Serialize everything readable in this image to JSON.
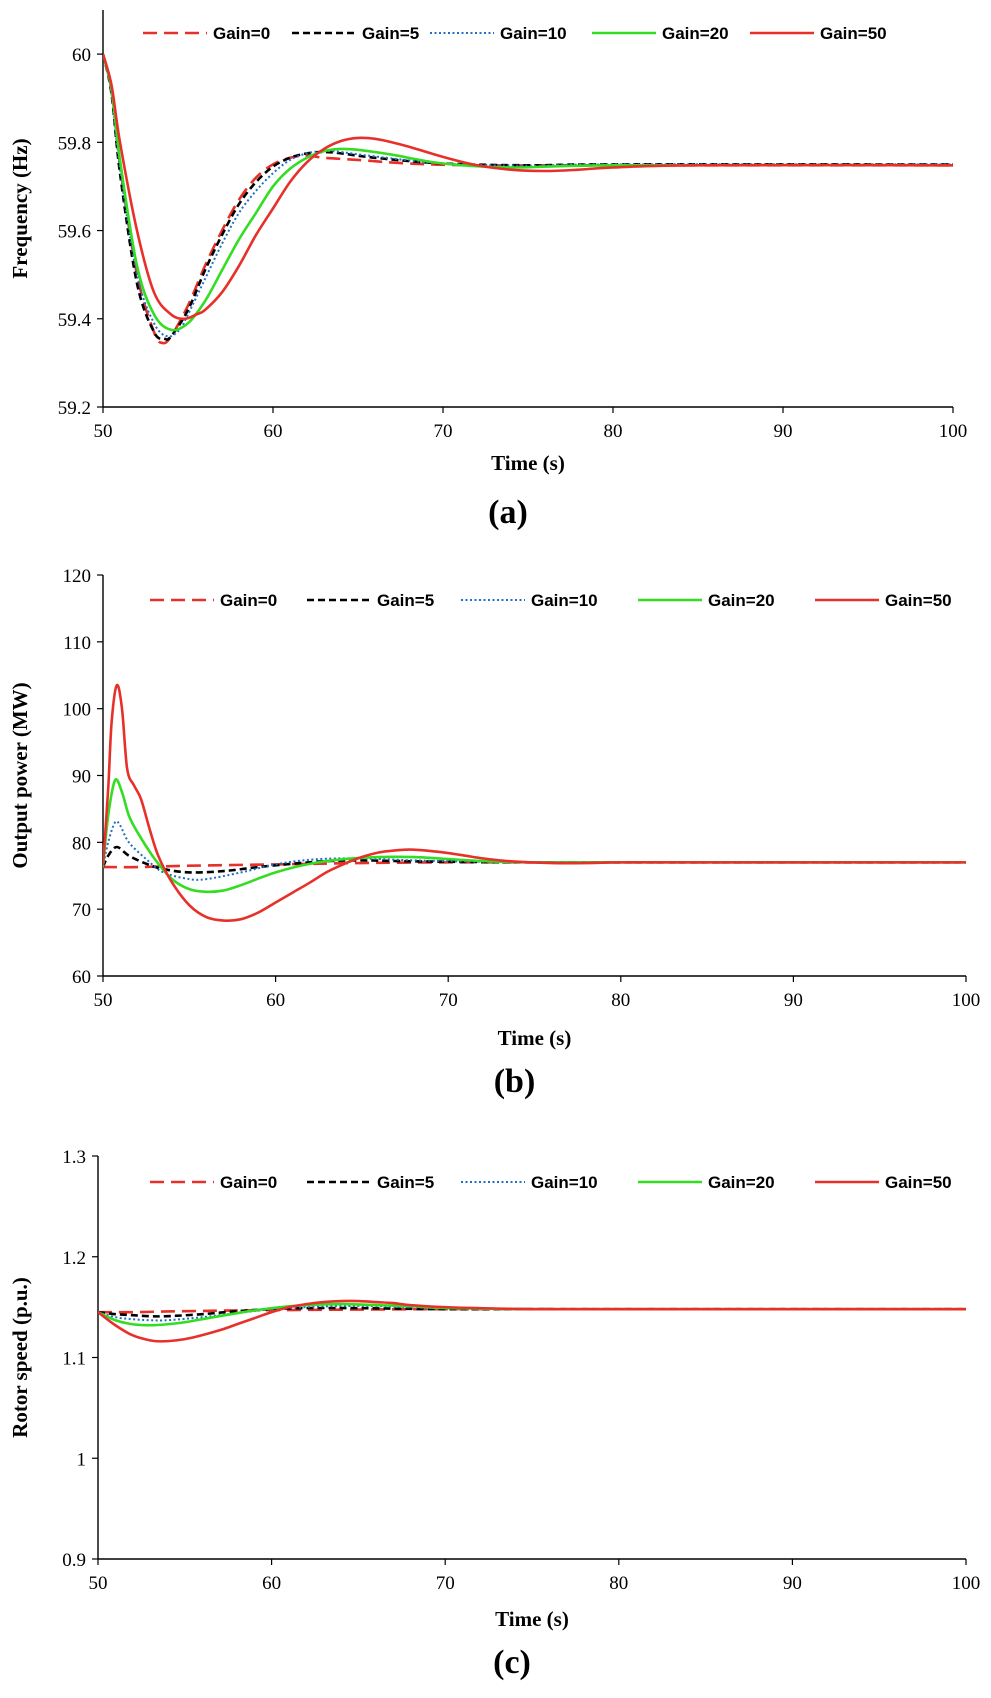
{
  "chart_data": [
    {
      "type": "line",
      "panel_label": "(a)",
      "xlabel": "Time (s)",
      "ylabel": "Frequency (Hz)",
      "xlim": [
        50,
        100
      ],
      "ylim": [
        59.2,
        60.1
      ],
      "xticks": [
        "50",
        "60",
        "70",
        "80",
        "90",
        "100"
      ],
      "yticks": [
        "59.2",
        "59.4",
        "59.6",
        "59.8",
        "60"
      ],
      "ytick_values": [
        59.2,
        59.4,
        59.6,
        59.8,
        60.0
      ],
      "legend_position": "top",
      "series": [
        {
          "name": "Gain=0",
          "color": "#e8302a",
          "dash": "long-dash",
          "x": [
            50,
            50.5,
            51,
            52,
            53,
            53.5,
            54,
            55,
            56,
            57,
            58,
            59,
            60,
            61,
            62,
            63,
            65,
            68,
            72,
            80,
            100
          ],
          "y": [
            60.0,
            59.92,
            59.75,
            59.5,
            59.37,
            59.345,
            59.36,
            59.43,
            59.52,
            59.6,
            59.67,
            59.72,
            59.75,
            59.765,
            59.77,
            59.765,
            59.76,
            59.752,
            59.748,
            59.748,
            59.748
          ]
        },
        {
          "name": "Gain=5",
          "color": "#000000",
          "dash": "short-dash",
          "x": [
            50,
            50.5,
            51,
            52,
            53,
            53.6,
            54,
            55,
            56,
            57,
            58,
            59,
            60,
            61,
            62,
            63,
            64,
            66,
            70,
            75,
            80,
            100
          ],
          "y": [
            60.0,
            59.91,
            59.73,
            59.48,
            59.37,
            59.355,
            59.36,
            59.42,
            59.51,
            59.59,
            59.66,
            59.71,
            59.745,
            59.765,
            59.775,
            59.778,
            59.775,
            59.765,
            59.752,
            59.748,
            59.75,
            59.75
          ]
        },
        {
          "name": "Gain=10",
          "color": "#1f6fc4",
          "dash": "dotted",
          "x": [
            50,
            50.5,
            51,
            52,
            53,
            53.8,
            54.5,
            55,
            56,
            57,
            58,
            59,
            60,
            61,
            62,
            63,
            64,
            66,
            70,
            75,
            80,
            100
          ],
          "y": [
            60.0,
            59.91,
            59.74,
            59.5,
            59.39,
            59.36,
            59.375,
            59.41,
            59.49,
            59.57,
            59.64,
            59.69,
            59.73,
            59.76,
            59.775,
            59.78,
            59.778,
            59.768,
            59.752,
            59.747,
            59.75,
            59.75
          ]
        },
        {
          "name": "Gain=20",
          "color": "#33dd22",
          "dash": "solid",
          "x": [
            50,
            50.5,
            51,
            52,
            53,
            54,
            55,
            56,
            57,
            58,
            59,
            60,
            61,
            62,
            63,
            64,
            65,
            67,
            70,
            74,
            80,
            100
          ],
          "y": [
            60.0,
            59.92,
            59.76,
            59.52,
            59.41,
            59.375,
            59.39,
            59.44,
            59.51,
            59.58,
            59.64,
            59.7,
            59.74,
            59.765,
            59.78,
            59.785,
            59.783,
            59.772,
            59.752,
            59.743,
            59.748,
            59.748
          ]
        },
        {
          "name": "Gain=50",
          "color": "#e8302a",
          "dash": "solid",
          "x": [
            50,
            50.5,
            51,
            52,
            53,
            54,
            54.8,
            55.5,
            56,
            57,
            58,
            59,
            60,
            61,
            62,
            63,
            64,
            65,
            66,
            67,
            68,
            70,
            72,
            74,
            76,
            78,
            80,
            85,
            100
          ],
          "y": [
            60.0,
            59.93,
            59.8,
            59.6,
            59.46,
            59.41,
            59.4,
            59.41,
            59.42,
            59.46,
            59.52,
            59.59,
            59.65,
            59.71,
            59.755,
            59.785,
            59.803,
            59.81,
            59.808,
            59.8,
            59.79,
            59.767,
            59.748,
            59.738,
            59.735,
            59.738,
            59.743,
            59.748,
            59.748
          ]
        }
      ],
      "legend_labels": [
        "Gain=0",
        "Gain=5",
        "Gain=10",
        "Gain=20",
        "Gain=50"
      ]
    },
    {
      "type": "line",
      "panel_label": "(b)",
      "xlabel": "Time (s)",
      "ylabel": "Output power (MW)",
      "xlim": [
        50,
        100
      ],
      "ylim": [
        60,
        120
      ],
      "xticks": [
        "50",
        "60",
        "70",
        "80",
        "90",
        "100"
      ],
      "yticks": [
        "60",
        "70",
        "80",
        "90",
        "100",
        "110",
        "120"
      ],
      "ytick_values": [
        60,
        70,
        80,
        90,
        100,
        110,
        120
      ],
      "legend_position": "top",
      "series": [
        {
          "name": "Gain=0",
          "color": "#e8302a",
          "dash": "long-dash",
          "x": [
            50,
            50.3,
            52,
            55,
            60,
            65,
            70,
            80,
            100
          ],
          "y": [
            76.3,
            76.3,
            76.3,
            76.5,
            76.7,
            76.9,
            77.0,
            77.0,
            77.0
          ]
        },
        {
          "name": "Gain=5",
          "color": "#000000",
          "dash": "short-dash",
          "x": [
            50,
            50.3,
            50.8,
            51.5,
            52.5,
            53.5,
            55,
            57,
            59,
            61,
            63,
            65,
            67,
            70,
            75,
            80,
            100
          ],
          "y": [
            76.3,
            78,
            79.3,
            78,
            76.8,
            76,
            75.5,
            75.7,
            76.3,
            76.8,
            77.2,
            77.3,
            77.2,
            77.1,
            77.0,
            77.0,
            77.0
          ]
        },
        {
          "name": "Gain=10",
          "color": "#1f6fc4",
          "dash": "dotted",
          "x": [
            50,
            50.3,
            50.7,
            51,
            51.5,
            52.5,
            53.5,
            55,
            56,
            58,
            60,
            62,
            64,
            66,
            68,
            72,
            80,
            100
          ],
          "y": [
            76.3,
            80,
            83,
            82.5,
            80,
            77.5,
            75.5,
            74.5,
            74.5,
            75.5,
            76.7,
            77.4,
            77.6,
            77.5,
            77.3,
            77.1,
            77.0,
            77.0
          ]
        },
        {
          "name": "Gain=20",
          "color": "#33dd22",
          "dash": "solid",
          "x": [
            50,
            50.3,
            50.7,
            51.1,
            51.5,
            52,
            53,
            54,
            55,
            56,
            57,
            58,
            60,
            62,
            64,
            66,
            68,
            70,
            72,
            75,
            80,
            100
          ],
          "y": [
            76.3,
            84,
            89.3,
            87.5,
            84,
            81.5,
            77.5,
            74.5,
            73,
            72.6,
            72.8,
            73.6,
            75.5,
            76.8,
            77.5,
            77.8,
            77.8,
            77.5,
            77.2,
            77.0,
            77.0,
            77.0
          ]
        },
        {
          "name": "Gain=50",
          "color": "#e8302a",
          "dash": "solid",
          "x": [
            50,
            50.3,
            50.5,
            50.8,
            51.1,
            51.4,
            51.8,
            52.2,
            52.7,
            53.2,
            54,
            55,
            56,
            57,
            58,
            59,
            60,
            61,
            62,
            63,
            64,
            65,
            66,
            67,
            67.5,
            68,
            69,
            70,
            71,
            72,
            73,
            74,
            76,
            78,
            80,
            85,
            100
          ],
          "y": [
            76.5,
            88,
            98,
            103.5,
            100,
            91,
            88.5,
            86.5,
            82,
            78,
            74,
            70.6,
            68.8,
            68.3,
            68.5,
            69.5,
            71,
            72.5,
            74,
            75.6,
            76.8,
            77.8,
            78.5,
            78.8,
            78.9,
            78.9,
            78.7,
            78.4,
            78.0,
            77.6,
            77.3,
            77.1,
            76.9,
            76.9,
            77.0,
            77.0,
            77.0
          ]
        }
      ],
      "legend_labels": [
        "Gain=0",
        "Gain=5",
        "Gain=10",
        "Gain=20",
        "Gain=50"
      ]
    },
    {
      "type": "line",
      "panel_label": "(c)",
      "xlabel": "Time (s)",
      "ylabel": "Rotor speed (p.u.)",
      "xlim": [
        50,
        100
      ],
      "ylim": [
        0.9,
        1.3
      ],
      "xticks": [
        "50",
        "60",
        "70",
        "80",
        "90",
        "100"
      ],
      "yticks": [
        "0.9",
        "1",
        "1.1",
        "1.2",
        "1.3"
      ],
      "ytick_values": [
        0.9,
        1.0,
        1.1,
        1.2,
        1.3
      ],
      "legend_position": "top",
      "series": [
        {
          "name": "Gain=0",
          "color": "#e8302a",
          "dash": "long-dash",
          "x": [
            50,
            52,
            55,
            60,
            70,
            80,
            100
          ],
          "y": [
            1.145,
            1.145,
            1.146,
            1.147,
            1.148,
            1.148,
            1.148
          ]
        },
        {
          "name": "Gain=5",
          "color": "#000000",
          "dash": "short-dash",
          "x": [
            50,
            51,
            52,
            53,
            54,
            56,
            58,
            60,
            62,
            65,
            70,
            80,
            100
          ],
          "y": [
            1.145,
            1.143,
            1.142,
            1.141,
            1.141,
            1.143,
            1.146,
            1.148,
            1.149,
            1.149,
            1.148,
            1.148,
            1.148
          ]
        },
        {
          "name": "Gain=10",
          "color": "#1f6fc4",
          "dash": "dotted",
          "x": [
            50,
            51,
            52,
            53,
            54,
            56,
            58,
            60,
            62,
            64,
            66,
            70,
            80,
            100
          ],
          "y": [
            1.145,
            1.14,
            1.138,
            1.137,
            1.137,
            1.14,
            1.144,
            1.148,
            1.15,
            1.151,
            1.151,
            1.149,
            1.148,
            1.148
          ]
        },
        {
          "name": "Gain=20",
          "color": "#33dd22",
          "dash": "solid",
          "x": [
            50,
            51,
            52,
            53,
            54,
            55,
            56,
            58,
            60,
            62,
            64,
            66,
            68,
            70,
            75,
            80,
            100
          ],
          "y": [
            1.145,
            1.137,
            1.133,
            1.132,
            1.133,
            1.135,
            1.138,
            1.144,
            1.149,
            1.152,
            1.153,
            1.152,
            1.151,
            1.149,
            1.148,
            1.148,
            1.148
          ]
        },
        {
          "name": "Gain=50",
          "color": "#e8302a",
          "dash": "solid",
          "x": [
            50,
            51,
            52,
            53,
            53.6,
            54.5,
            55.5,
            57,
            58,
            59,
            60,
            61,
            62,
            63,
            64,
            65,
            66,
            67,
            68,
            70,
            72,
            75,
            80,
            100
          ],
          "y": [
            1.145,
            1.132,
            1.122,
            1.117,
            1.116,
            1.117,
            1.12,
            1.127,
            1.133,
            1.139,
            1.145,
            1.15,
            1.153,
            1.155,
            1.156,
            1.156,
            1.155,
            1.154,
            1.152,
            1.15,
            1.149,
            1.148,
            1.148,
            1.148
          ]
        }
      ],
      "legend_labels": [
        "Gain=0",
        "Gain=5",
        "Gain=10",
        "Gain=20",
        "Gain=50"
      ]
    }
  ]
}
